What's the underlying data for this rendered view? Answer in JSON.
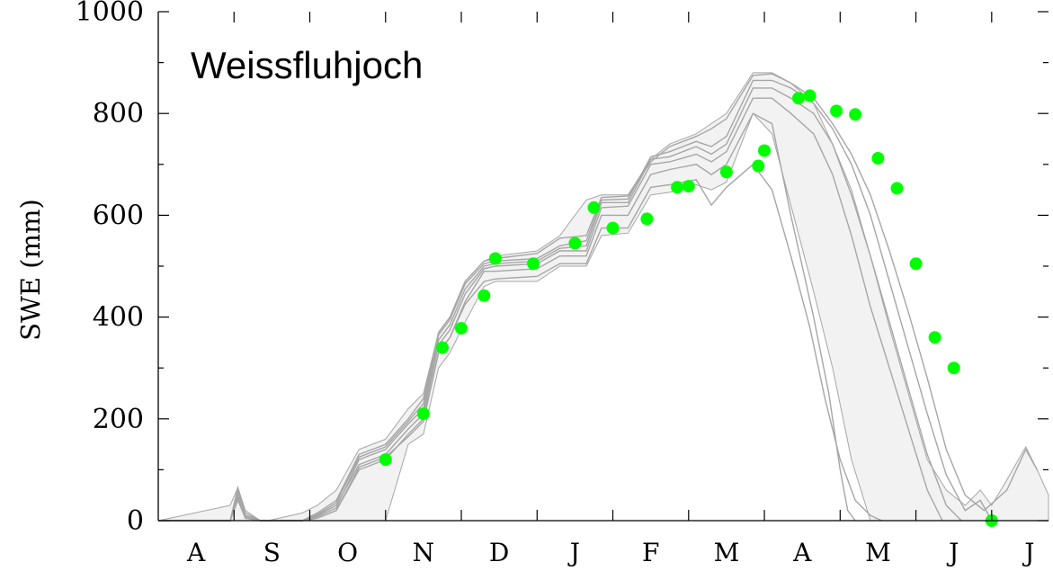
{
  "chart_data": {
    "type": "line",
    "title": "Weissfluhjoch",
    "xlabel": "",
    "ylabel": "SWE (mm)",
    "ylim": [
      0,
      1000
    ],
    "yticks": [
      0,
      200,
      400,
      600,
      800,
      1000
    ],
    "ytick_labels": [
      "0",
      "200",
      "400",
      "600",
      "800",
      "1000"
    ],
    "x_months": [
      "A",
      "S",
      "O",
      "N",
      "D",
      "J",
      "F",
      "M",
      "A",
      "M",
      "J",
      "J"
    ],
    "x_unit": "months since 1 August",
    "xlim": [
      0,
      11.75
    ],
    "grid": false,
    "colors": {
      "ensemble": "#a6a6a6",
      "observed": "#00ff00",
      "axis": "#000000"
    },
    "ensemble_envelope": {
      "description_values": "x in months since 1 Aug, lower and upper SWE in mm",
      "x": [
        0.0,
        0.95,
        1.05,
        1.15,
        1.35,
        1.45,
        1.9,
        2.1,
        2.35,
        2.65,
        3.0,
        3.3,
        3.5,
        3.7,
        3.85,
        4.05,
        4.3,
        4.45,
        5.0,
        5.3,
        5.65,
        5.85,
        6.2,
        6.5,
        6.75,
        7.1,
        7.3,
        7.5,
        7.85,
        8.1,
        8.35,
        8.65,
        8.9,
        9.15,
        9.4,
        9.65,
        9.9,
        10.15,
        10.4,
        10.65,
        10.85,
        11.0,
        11.2,
        11.45,
        11.6,
        11.75
      ],
      "lower": [
        0,
        0,
        0,
        0,
        0,
        0,
        0,
        0,
        0,
        0,
        0,
        150,
        170,
        300,
        330,
        390,
        460,
        470,
        470,
        500,
        500,
        560,
        565,
        640,
        645,
        660,
        650,
        665,
        800,
        760,
        620,
        450,
        300,
        120,
        0,
        0,
        0,
        0,
        0,
        0,
        0,
        0,
        0,
        0,
        0,
        0
      ],
      "upper": [
        0,
        30,
        65,
        20,
        0,
        0,
        15,
        30,
        60,
        140,
        160,
        220,
        250,
        370,
        400,
        470,
        510,
        520,
        530,
        560,
        630,
        640,
        640,
        710,
        740,
        760,
        780,
        800,
        880,
        880,
        860,
        820,
        740,
        650,
        520,
        380,
        250,
        120,
        60,
        30,
        60,
        30,
        80,
        145,
        100,
        50
      ]
    },
    "ensemble_members": [
      {
        "x": [
          0.0,
          0.95,
          1.05,
          1.15,
          1.35,
          1.9,
          2.1,
          2.35,
          2.65,
          3.0,
          3.3,
          3.5,
          3.7,
          3.85,
          4.05,
          4.3,
          4.45,
          5.0,
          5.3,
          5.65,
          5.85,
          6.2,
          6.5,
          6.75,
          7.1,
          7.3,
          7.5,
          7.85,
          8.1,
          8.35,
          8.65,
          8.85,
          9.0,
          9.1,
          9.2
        ],
        "y": [
          0,
          0,
          60,
          10,
          0,
          0,
          5,
          20,
          100,
          120,
          170,
          200,
          330,
          360,
          430,
          490,
          490,
          495,
          520,
          520,
          600,
          600,
          680,
          690,
          700,
          680,
          700,
          800,
          780,
          600,
          400,
          250,
          100,
          20,
          0
        ]
      },
      {
        "x": [
          0.0,
          0.95,
          1.05,
          1.15,
          1.35,
          1.9,
          2.1,
          2.35,
          2.65,
          3.0,
          3.3,
          3.5,
          3.7,
          3.85,
          4.05,
          4.3,
          4.45,
          5.0,
          5.3,
          5.65,
          5.85,
          6.2,
          6.5,
          6.75,
          7.1,
          7.3,
          7.5,
          7.85,
          8.1,
          8.35,
          8.65,
          8.9,
          9.15,
          9.4,
          9.65,
          9.9,
          10.15,
          10.35
        ],
        "y": [
          0,
          0,
          65,
          15,
          0,
          0,
          10,
          30,
          110,
          130,
          180,
          210,
          345,
          375,
          445,
          495,
          500,
          505,
          530,
          530,
          615,
          618,
          700,
          705,
          720,
          705,
          725,
          830,
          830,
          800,
          760,
          680,
          560,
          420,
          300,
          180,
          60,
          0
        ]
      },
      {
        "x": [
          0.0,
          0.95,
          1.05,
          1.15,
          1.35,
          1.9,
          2.1,
          2.35,
          2.65,
          3.0,
          3.3,
          3.5,
          3.7,
          3.85,
          4.05,
          4.3,
          4.45,
          5.0,
          5.3,
          5.65,
          5.85,
          6.2,
          6.5,
          6.75,
          7.1,
          7.3,
          7.5,
          7.85,
          8.1,
          8.35,
          8.65,
          8.9,
          9.15,
          9.4,
          9.65,
          9.9,
          10.15,
          10.4,
          10.6
        ],
        "y": [
          0,
          0,
          55,
          10,
          0,
          0,
          8,
          25,
          120,
          140,
          190,
          220,
          355,
          385,
          455,
          500,
          505,
          510,
          535,
          540,
          625,
          625,
          710,
          715,
          735,
          720,
          740,
          850,
          850,
          830,
          800,
          740,
          640,
          520,
          390,
          260,
          130,
          30,
          0
        ]
      },
      {
        "x": [
          0.0,
          0.95,
          1.05,
          1.15,
          1.35,
          1.9,
          2.1,
          2.35,
          2.65,
          3.0,
          3.3,
          3.5,
          3.7,
          3.85,
          4.05,
          4.3,
          4.45,
          5.0,
          5.3,
          5.65,
          5.85,
          6.2,
          6.5,
          6.75,
          7.1,
          7.3,
          7.5,
          7.85,
          8.1,
          8.35,
          8.65,
          8.9,
          9.15,
          9.4,
          9.65,
          9.9,
          10.15,
          10.4,
          10.65,
          10.85,
          11.0
        ],
        "y": [
          0,
          0,
          50,
          8,
          0,
          0,
          12,
          35,
          125,
          145,
          195,
          230,
          365,
          395,
          465,
          505,
          510,
          515,
          540,
          550,
          630,
          632,
          715,
          725,
          745,
          735,
          755,
          865,
          865,
          850,
          820,
          770,
          700,
          600,
          470,
          340,
          210,
          90,
          20,
          40,
          0
        ]
      },
      {
        "x": [
          0.0,
          0.95,
          1.05,
          1.15,
          1.35,
          1.9,
          2.1,
          2.35,
          2.65,
          3.0,
          3.3,
          3.5,
          3.7,
          3.85,
          4.05,
          4.3,
          4.45,
          5.0,
          5.3,
          5.65,
          5.85,
          6.2,
          6.5,
          6.75,
          7.1,
          7.3,
          7.5,
          7.85,
          8.1,
          8.35,
          8.65,
          8.9,
          9.15,
          9.4,
          9.65,
          9.9,
          10.15,
          10.4,
          10.65,
          10.9,
          11.2,
          11.45,
          11.6
        ],
        "y": [
          0,
          0,
          45,
          5,
          0,
          0,
          15,
          40,
          130,
          150,
          200,
          240,
          370,
          400,
          470,
          510,
          515,
          525,
          555,
          560,
          635,
          638,
          705,
          735,
          755,
          770,
          790,
          875,
          878,
          860,
          830,
          780,
          720,
          640,
          530,
          410,
          280,
          140,
          50,
          20,
          60,
          140,
          100
        ]
      },
      {
        "x": [
          0.0,
          0.95,
          1.05,
          1.15,
          1.35,
          1.9,
          2.1,
          2.35,
          2.65,
          3.0,
          3.3,
          3.5,
          3.7,
          3.85,
          4.05,
          4.3,
          4.45,
          5.0,
          5.3,
          5.65,
          5.85,
          6.2,
          6.5,
          6.75,
          7.1,
          7.3,
          7.5,
          7.85,
          8.1,
          8.35,
          8.6,
          8.8,
          9.0,
          9.2,
          9.4,
          9.55
        ],
        "y": [
          0,
          0,
          40,
          5,
          0,
          0,
          5,
          20,
          105,
          125,
          165,
          195,
          330,
          360,
          425,
          470,
          475,
          480,
          505,
          505,
          575,
          575,
          655,
          660,
          670,
          620,
          655,
          700,
          650,
          520,
          380,
          240,
          120,
          40,
          10,
          0
        ]
      }
    ],
    "observed_points": [
      {
        "x": 3.0,
        "y": 120
      },
      {
        "x": 3.5,
        "y": 210
      },
      {
        "x": 3.75,
        "y": 340
      },
      {
        "x": 4.0,
        "y": 378
      },
      {
        "x": 4.3,
        "y": 442
      },
      {
        "x": 4.45,
        "y": 515
      },
      {
        "x": 4.95,
        "y": 505
      },
      {
        "x": 5.5,
        "y": 545
      },
      {
        "x": 5.75,
        "y": 615
      },
      {
        "x": 6.0,
        "y": 575
      },
      {
        "x": 6.45,
        "y": 593
      },
      {
        "x": 6.85,
        "y": 655
      },
      {
        "x": 7.0,
        "y": 657
      },
      {
        "x": 7.5,
        "y": 685
      },
      {
        "x": 7.92,
        "y": 697
      },
      {
        "x": 8.0,
        "y": 727
      },
      {
        "x": 8.45,
        "y": 830
      },
      {
        "x": 8.6,
        "y": 835
      },
      {
        "x": 8.95,
        "y": 805
      },
      {
        "x": 9.2,
        "y": 798
      },
      {
        "x": 9.5,
        "y": 712
      },
      {
        "x": 9.75,
        "y": 653
      },
      {
        "x": 10.0,
        "y": 505
      },
      {
        "x": 10.25,
        "y": 360
      },
      {
        "x": 10.5,
        "y": 300
      },
      {
        "x": 11.0,
        "y": 0
      }
    ]
  }
}
